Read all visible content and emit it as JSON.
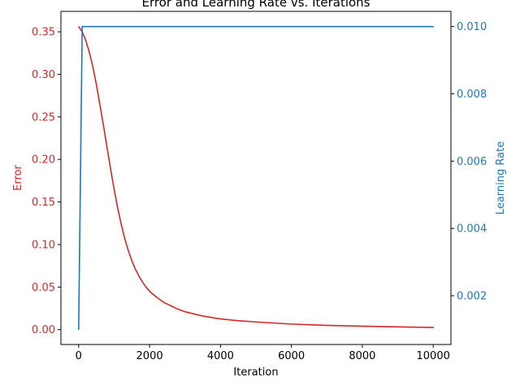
{
  "chart_data": {
    "type": "line",
    "title": "Error and Learning Rate vs. Iterations",
    "xlabel": "Iteration",
    "xlim": [
      -500,
      10500
    ],
    "xticks": [
      0,
      2000,
      4000,
      6000,
      8000,
      10000
    ],
    "xtick_labels": [
      "0",
      "2000",
      "4000",
      "6000",
      "8000",
      "10000"
    ],
    "grid": false,
    "y_left": {
      "label": "Error",
      "color": "#d62728",
      "ylim": [
        -0.0175,
        0.374
      ],
      "ticks": [
        0.0,
        0.05,
        0.1,
        0.15,
        0.2,
        0.25,
        0.3,
        0.35
      ],
      "tick_labels": [
        "0.00",
        "0.05",
        "0.10",
        "0.15",
        "0.20",
        "0.25",
        "0.30",
        "0.35"
      ]
    },
    "y_right": {
      "label": "Learning Rate",
      "color": "#1f77b4",
      "ylim": [
        0.00055,
        0.01045
      ],
      "ticks": [
        0.002,
        0.004,
        0.006,
        0.008,
        0.01
      ],
      "tick_labels": [
        "0.002",
        "0.004",
        "0.006",
        "0.008",
        "0.010"
      ]
    },
    "series": [
      {
        "axis": "left",
        "color": "#d62728",
        "x": [
          0,
          100,
          200,
          300,
          400,
          500,
          600,
          700,
          800,
          900,
          1000,
          1100,
          1200,
          1300,
          1400,
          1500,
          1600,
          1700,
          1800,
          1900,
          2000,
          2200,
          2400,
          2600,
          2800,
          3000,
          3500,
          4000,
          4500,
          5000,
          6000,
          7000,
          8000,
          9000,
          10000
        ],
        "values": [
          0.356,
          0.35,
          0.34,
          0.326,
          0.309,
          0.288,
          0.264,
          0.24,
          0.214,
          0.189,
          0.165,
          0.143,
          0.124,
          0.107,
          0.093,
          0.081,
          0.071,
          0.063,
          0.056,
          0.05,
          0.045,
          0.038,
          0.032,
          0.028,
          0.024,
          0.021,
          0.016,
          0.0125,
          0.0105,
          0.009,
          0.0065,
          0.005,
          0.004,
          0.0032,
          0.0025
        ]
      },
      {
        "axis": "right",
        "color": "#1f77b4",
        "x": [
          0,
          10,
          20,
          30,
          40,
          50,
          60,
          70,
          80,
          90,
          100,
          10000
        ],
        "values": [
          0.001,
          0.0019,
          0.0028,
          0.0037,
          0.0046,
          0.0055,
          0.0064,
          0.0073,
          0.0082,
          0.0091,
          0.01,
          0.01
        ]
      }
    ]
  }
}
